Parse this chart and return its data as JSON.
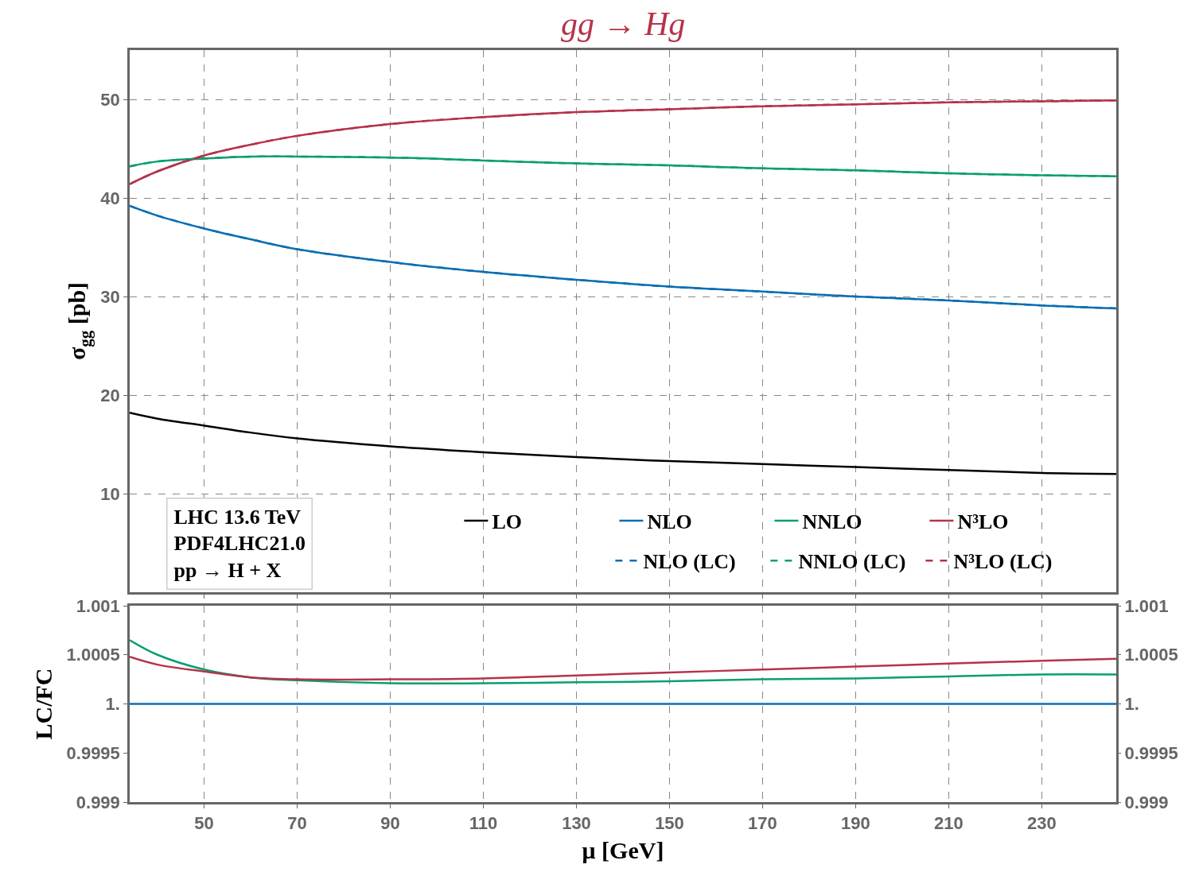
{
  "chart_data": [
    {
      "type": "line",
      "title": "gg → Hg",
      "ylabel": "σ$_{gg}$ [pb]",
      "x": [
        34,
        40,
        50,
        60,
        70,
        90,
        110,
        130,
        150,
        170,
        190,
        210,
        230,
        246
      ],
      "series": [
        {
          "name": "LO",
          "color": "#000000",
          "line_style": "solid",
          "values": [
            18.2,
            17.6,
            16.9,
            16.2,
            15.6,
            14.8,
            14.2,
            13.7,
            13.3,
            13.0,
            12.7,
            12.4,
            12.1,
            12.0
          ]
        },
        {
          "name": "NLO",
          "color": "#0a6eb4",
          "line_style": "solid",
          "values": [
            39.2,
            38.2,
            36.9,
            35.8,
            34.8,
            33.5,
            32.5,
            31.7,
            31.0,
            30.5,
            30.0,
            29.6,
            29.1,
            28.8
          ]
        },
        {
          "name": "NNLO",
          "color": "#0a9e73",
          "line_style": "solid",
          "values": [
            43.2,
            43.7,
            44.0,
            44.2,
            44.2,
            44.1,
            43.8,
            43.5,
            43.3,
            43.0,
            42.8,
            42.5,
            42.3,
            42.2
          ]
        },
        {
          "name": "N³LO",
          "color": "#b5334a",
          "line_style": "solid",
          "values": [
            41.4,
            42.7,
            44.3,
            45.4,
            46.3,
            47.5,
            48.2,
            48.7,
            49.0,
            49.3,
            49.5,
            49.7,
            49.8,
            49.9
          ]
        },
        {
          "name": "NLO (LC)",
          "color": "#0a6eb4",
          "line_style": "dashed",
          "values": [
            39.2,
            38.2,
            36.9,
            35.8,
            34.8,
            33.5,
            32.5,
            31.7,
            31.0,
            30.5,
            30.0,
            29.6,
            29.1,
            28.8
          ]
        },
        {
          "name": "NNLO (LC)",
          "color": "#0a9e73",
          "line_style": "dashed",
          "values": [
            43.2,
            43.7,
            44.0,
            44.2,
            44.2,
            44.1,
            43.8,
            43.5,
            43.3,
            43.0,
            42.8,
            42.5,
            42.3,
            42.2
          ]
        },
        {
          "name": "N³LO (LC)",
          "color": "#b5334a",
          "line_style": "dashed",
          "values": [
            41.4,
            42.7,
            44.3,
            45.4,
            46.3,
            47.5,
            48.2,
            48.7,
            49.0,
            49.3,
            49.5,
            49.7,
            49.8,
            49.9
          ]
        }
      ],
      "xlim": [
        34,
        246
      ],
      "xticks": [
        50,
        70,
        90,
        110,
        130,
        150,
        170,
        190,
        210,
        230
      ],
      "ylim": [
        0,
        55
      ],
      "yticks": [
        10,
        20,
        30,
        40,
        50
      ],
      "tick_labels": "y",
      "grid": true,
      "legend": "bottom right",
      "annotations": [
        "LHC 13.6 TeV",
        "PDF4LHC21.0",
        "pp → H + X"
      ]
    },
    {
      "type": "line",
      "ylabel": "LC/FC",
      "xlabel": "μ [GeV]",
      "x": [
        34,
        40,
        50,
        60,
        70,
        90,
        110,
        130,
        150,
        170,
        190,
        210,
        230,
        246
      ],
      "series": [
        {
          "color": "#0a6eb4",
          "values": [
            1.0,
            1.0,
            1.0,
            1.0,
            1.0,
            1.0,
            1.0,
            1.0,
            1.0,
            1.0,
            1.0,
            1.0,
            1.0,
            1.0
          ]
        },
        {
          "color": "#0a9e73",
          "values": [
            1.00065,
            1.0005,
            1.00035,
            1.00027,
            1.00024,
            1.00021,
            1.00021,
            1.00022,
            1.00023,
            1.00025,
            1.00026,
            1.00028,
            1.0003,
            1.0003
          ]
        },
        {
          "color": "#b5334a",
          "values": [
            1.00048,
            1.0004,
            1.00033,
            1.00027,
            1.00025,
            1.00025,
            1.00026,
            1.00029,
            1.00032,
            1.00035,
            1.00038,
            1.00041,
            1.00044,
            1.00046
          ]
        }
      ],
      "xlim": [
        34,
        246
      ],
      "xticks": [
        50,
        70,
        90,
        110,
        130,
        150,
        170,
        190,
        210,
        230
      ],
      "ylim": [
        0.999,
        1.001
      ],
      "yticks": [
        0.999,
        0.9995,
        {
          "value": 1,
          "label": "1."
        },
        1.0005,
        1.001
      ],
      "y2lim": [
        0.999,
        1.001
      ],
      "y2ticks": [
        0.999,
        0.9995,
        {
          "value": 1,
          "label": "1."
        },
        1.0005,
        1.001
      ],
      "grid": "x"
    }
  ]
}
